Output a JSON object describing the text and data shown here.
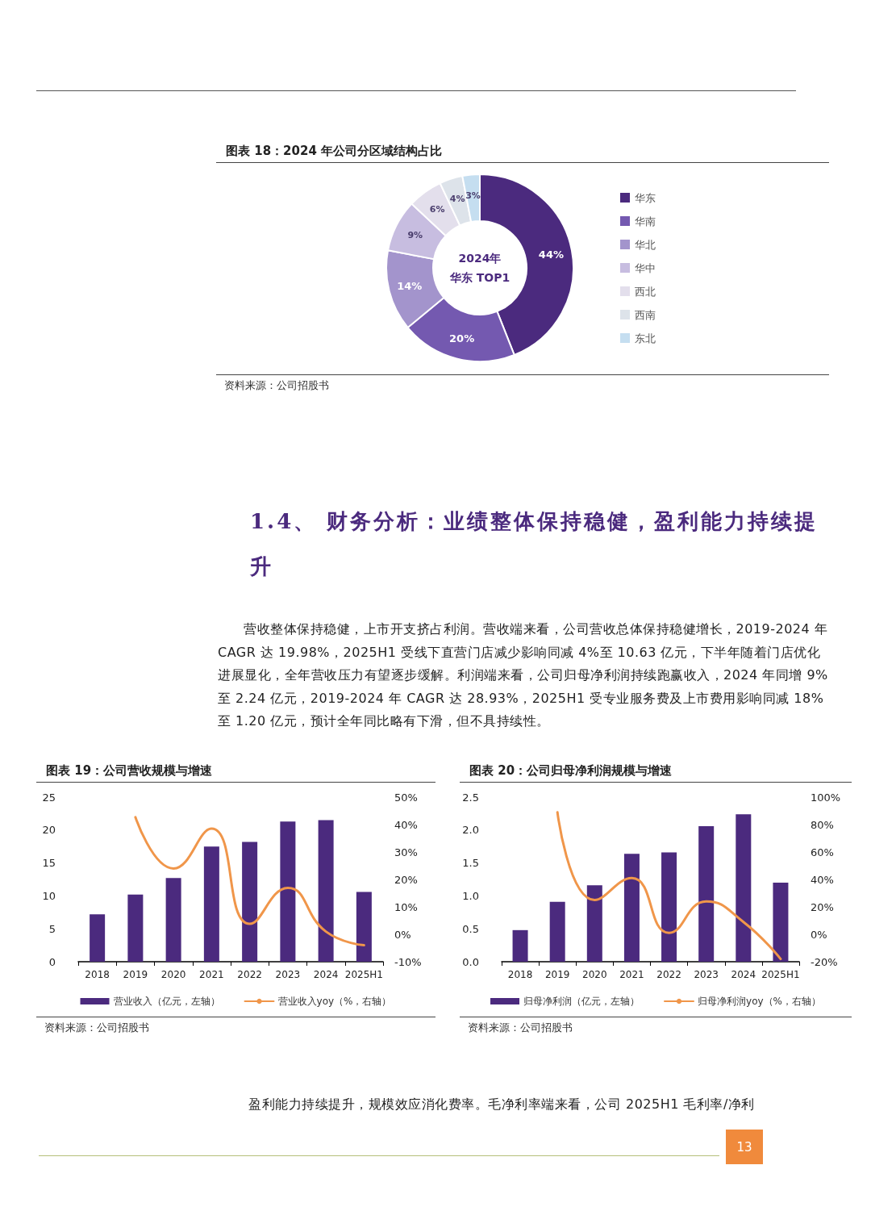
{
  "chart_data": [
    {
      "type": "donut",
      "title": "图表 18：2024 年公司分区域结构占比",
      "categories": [
        "华东",
        "华南",
        "华北",
        "华中",
        "西北",
        "西南",
        "东北"
      ],
      "values": [
        44,
        20,
        14,
        9,
        6,
        4,
        3
      ],
      "colors": [
        "#4b2a7e",
        "#7459b0",
        "#a394cc",
        "#c7bde0",
        "#e3dfec",
        "#dde3ea",
        "#c5def0"
      ],
      "value_labels": [
        "44%",
        "20%",
        "14%",
        "9%",
        "6%",
        "4%",
        "3%"
      ],
      "legend": "right",
      "annotations": [
        "2024年",
        "华东 TOP1",
        "资料来源：公司招股书"
      ]
    },
    {
      "type": "other",
      "title": "1.4、 财务分析：业绩整体保持稳健，盈利能力持续提升",
      "annotations": [
        "营收整体保持稳健，上市开支挤占利润。营收端来看，公司营收总体保持稳健增长，2019-2024 年 CAGR 达 19.98%，2025H1 受线下直营门店减少影响同减 4%至 10.63 亿元，下半年随着门店优化进展显化，全年营收压力有望逐步缓解。利润端来看，公司归母净利润持续跑赢收入，2024 年同增 9%至 2.24 亿元，2019-2024 年 CAGR 达 28.93%，2025H1 受专业服务费及上市费用影响同减 18%至 1.20 亿元，预计全年同比略有下滑，但不具持续性。"
      ]
    },
    {
      "type": "bar",
      "title": "图表 19：公司营收规模与增速",
      "categories": [
        "2018",
        "2019",
        "2020",
        "2021",
        "2022",
        "2023",
        "2024",
        "2025H1"
      ],
      "series": [
        {
          "name": "营业收入（亿元，左轴）",
          "color": "#4b2a7e",
          "values": [
            7.2,
            10.2,
            12.7,
            17.5,
            18.2,
            21.3,
            21.5,
            10.6
          ]
        },
        {
          "name": "营业收入yoy（%，右轴）",
          "type": "line",
          "axis": "y2",
          "color": "#f0964a",
          "values": [
            null,
            42.7,
            24,
            38.5,
            3.8,
            16.9,
            1,
            -4
          ]
        }
      ],
      "ylim": [
        0,
        25
      ],
      "yticks": [
        0,
        5,
        10,
        15,
        20,
        25
      ],
      "y2lim": [
        -10,
        50
      ],
      "y2ticks": [
        {
          "value": -10,
          "label": "-10%"
        },
        {
          "value": 0,
          "label": "0%"
        },
        {
          "value": 10,
          "label": "10%"
        },
        {
          "value": 20,
          "label": "20%"
        },
        {
          "value": 30,
          "label": "30%"
        },
        {
          "value": 40,
          "label": "40%"
        },
        {
          "value": 50,
          "label": "50%"
        }
      ],
      "grid": false,
      "legend": "bottom",
      "marker": "none",
      "line_style": "solid",
      "annotations": [
        "资料来源：公司招股书"
      ]
    },
    {
      "type": "bar",
      "title": "图表 20：公司归母净利润规模与增速",
      "categories": [
        "2018",
        "2019",
        "2020",
        "2021",
        "2022",
        "2023",
        "2024",
        "2025H1"
      ],
      "series": [
        {
          "name": "归母净利润（亿元，左轴）",
          "color": "#4b2a7e",
          "values": [
            0.48,
            0.91,
            1.16,
            1.64,
            1.66,
            2.06,
            2.24,
            1.2
          ]
        },
        {
          "name": "归母净利润yoy（%，右轴）",
          "type": "line",
          "axis": "y2",
          "color": "#f0964a",
          "values": [
            null,
            89,
            25,
            41,
            1,
            24,
            9,
            -18
          ]
        }
      ],
      "ylim": [
        0,
        2.5
      ],
      "yticks": [
        {
          "value": 0,
          "label": "0.0"
        },
        {
          "value": 0.5,
          "label": "0.5"
        },
        {
          "value": 1,
          "label": "1.0"
        },
        {
          "value": 1.5,
          "label": "1.5"
        },
        {
          "value": 2,
          "label": "2.0"
        },
        {
          "value": 2.5,
          "label": "2.5"
        }
      ],
      "y2lim": [
        -20,
        100
      ],
      "y2ticks": [
        {
          "value": -20,
          "label": "-20%"
        },
        {
          "value": 0,
          "label": "0%"
        },
        {
          "value": 20,
          "label": "20%"
        },
        {
          "value": 40,
          "label": "40%"
        },
        {
          "value": 60,
          "label": "60%"
        },
        {
          "value": 80,
          "label": "80%"
        },
        {
          "value": 100,
          "label": "100%"
        }
      ],
      "grid": false,
      "legend": "bottom",
      "marker": "none",
      "line_style": "solid",
      "annotations": [
        "资料来源：公司招股书"
      ]
    },
    {
      "type": "other",
      "annotations": [
        "盈利能力持续提升，规模效应消化费率。毛净利率端来看，公司 2025H1 毛利率/净利",
        "13"
      ]
    }
  ]
}
